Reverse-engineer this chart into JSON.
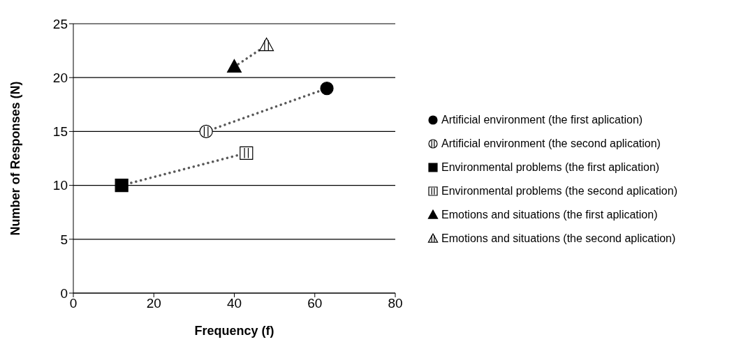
{
  "chart_data": {
    "type": "scatter",
    "xlabel": "Frequency (f)",
    "ylabel": "Number of Responses (N)",
    "xlim": [
      0,
      80
    ],
    "xticks": [
      0,
      20,
      40,
      60,
      80
    ],
    "ylim": [
      0,
      25
    ],
    "yticks": [
      0,
      5,
      10,
      15,
      20,
      25
    ],
    "grid": "y",
    "legend": "right",
    "series": [
      {
        "name": "Artificial environment (the first aplication)",
        "color": "#000000",
        "marker": "circle",
        "x": [
          63
        ],
        "values": [
          19
        ]
      },
      {
        "name": "Artificial environment (the second aplication)",
        "color": "#ffffff",
        "marker": "circle",
        "x": [
          33
        ],
        "values": [
          15
        ]
      },
      {
        "name": "Environmental problems (the first aplication)",
        "color": "#000000",
        "marker": "square",
        "x": [
          12
        ],
        "values": [
          10
        ]
      },
      {
        "name": "Environmental problems (the second aplication)",
        "color": "#ffffff",
        "marker": "square",
        "x": [
          43
        ],
        "values": [
          13
        ]
      },
      {
        "name": "Emotions and situations (the first aplication)",
        "color": "#000000",
        "marker": "triangle",
        "x": [
          40
        ],
        "values": [
          21
        ]
      },
      {
        "name": "Emotions and situations (the second aplication)",
        "color": "#ffffff",
        "marker": "triangle",
        "x": [
          48
        ],
        "values": [
          23
        ]
      },
      {
        "type": "line",
        "color": "#595959",
        "marker": "none",
        "line_style": "dotted",
        "x": [
          33,
          63
        ],
        "values": [
          15,
          19
        ]
      },
      {
        "type": "line",
        "color": "#595959",
        "marker": "none",
        "line_style": "dotted",
        "x": [
          12,
          43
        ],
        "values": [
          10,
          13
        ]
      },
      {
        "type": "line",
        "color": "#595959",
        "marker": "none",
        "line_style": "dotted",
        "x": [
          40,
          48
        ],
        "values": [
          21,
          23
        ]
      }
    ]
  }
}
